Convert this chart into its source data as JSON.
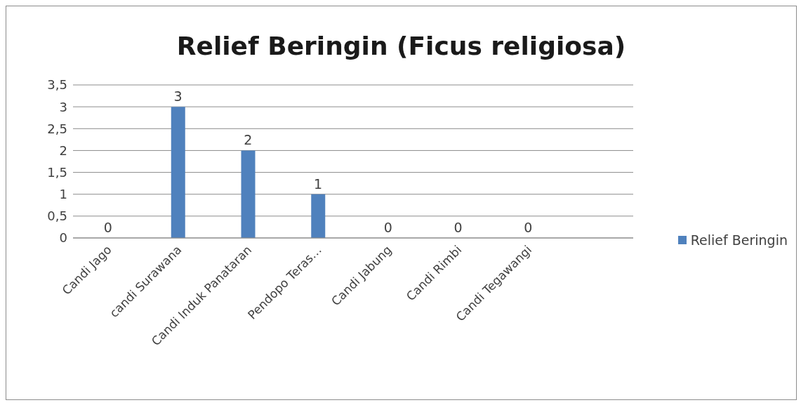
{
  "chart_data": {
    "type": "bar",
    "title": "Relief  Beringin (Ficus religiosa)",
    "categories": [
      "Candi Jago",
      "candi Surawana",
      "Candi Induk Panataran",
      "Pendopo Teras…",
      "Candi Jabung",
      "Candi Rimbi",
      "Candi Tegawangi",
      null
    ],
    "series": [
      {
        "name": "Relief Beringin",
        "color": "#4f81bd",
        "values": [
          0,
          3,
          2,
          1,
          0,
          0,
          0,
          null
        ]
      }
    ],
    "ylim": [
      0,
      3.5
    ],
    "yticks": [
      0,
      {
        "value": 0.5,
        "label": "0,5"
      },
      1,
      {
        "value": 1.5,
        "label": "1,5"
      },
      2,
      {
        "value": 2.5,
        "label": "2,5"
      },
      3,
      {
        "value": 3.5,
        "label": "3,5"
      }
    ],
    "grid": "y",
    "legend": "right",
    "data_labels": true
  }
}
